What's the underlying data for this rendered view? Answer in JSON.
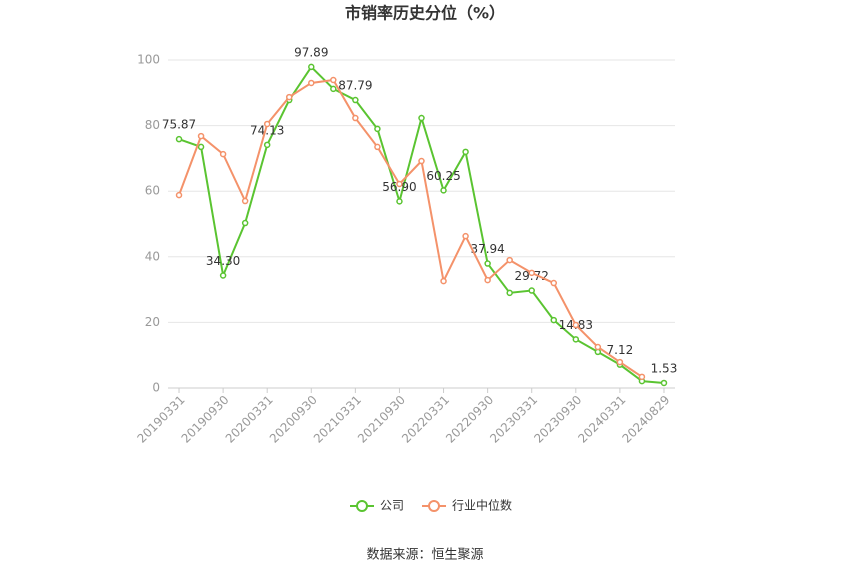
{
  "chart_data": {
    "type": "line",
    "title": "市销率历史分位（%）",
    "categories": [
      "20190331",
      null,
      "20190930",
      null,
      "20200331",
      null,
      "20200930",
      null,
      "20210331",
      null,
      "20210930",
      null,
      "20220331",
      null,
      "20220930",
      null,
      "20230331",
      null,
      "20230930",
      null,
      "20240331",
      null,
      "20240829"
    ],
    "series": [
      {
        "name": "公司",
        "color": "#5ac431",
        "values": [
          75.87,
          73.5,
          34.3,
          50.3,
          74.13,
          87.8,
          97.89,
          91.2,
          87.79,
          79.0,
          56.9,
          82.3,
          60.25,
          72.0,
          37.94,
          29.0,
          29.72,
          20.7,
          14.83,
          11.0,
          7.12,
          2.1,
          1.53
        ],
        "value_labels": [
          "75.87",
          null,
          "34.30",
          null,
          "74.13",
          null,
          "97.89",
          null,
          "87.79",
          null,
          "56.90",
          null,
          "60.25",
          null,
          "37.94",
          null,
          "29.72",
          null,
          "14.83",
          null,
          "7.12",
          null,
          "1.53"
        ]
      },
      {
        "name": "行业中位数",
        "color": "#f4926a",
        "values": [
          58.8,
          76.8,
          71.3,
          57.0,
          80.5,
          88.7,
          93.0,
          93.9,
          82.3,
          73.5,
          62.2,
          69.2,
          32.6,
          46.3,
          32.9,
          39.0,
          35.1,
          32.0,
          19.2,
          12.5,
          7.9,
          3.4,
          null
        ]
      }
    ],
    "ylim": [
      0,
      100
    ],
    "yticks": [
      0,
      20,
      40,
      60,
      80,
      100
    ],
    "grid": true,
    "legend": "bottom",
    "source": "数据来源：恒生聚源"
  }
}
